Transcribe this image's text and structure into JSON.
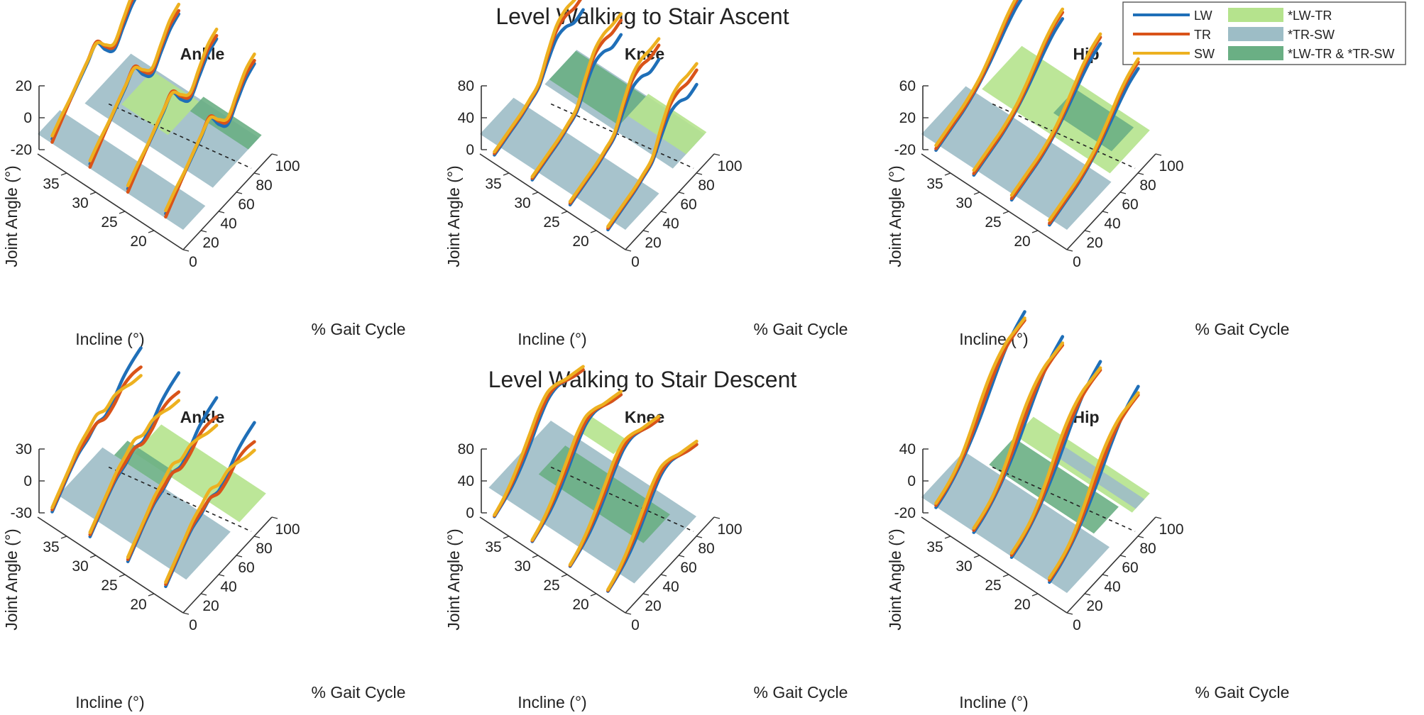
{
  "colors": {
    "LW": "#1f6fb8",
    "TR": "#d95319",
    "SW": "#edb120",
    "LW-TR": "#b5e38d",
    "TR-SW": "#9dbdc6",
    "both": "#6aaf84"
  },
  "legend": {
    "lines": [
      {
        "key": "LW",
        "label": "LW"
      },
      {
        "key": "TR",
        "label": "TR"
      },
      {
        "key": "SW",
        "label": "SW"
      }
    ],
    "patches": [
      {
        "key": "LW-TR",
        "label": "*LW-TR"
      },
      {
        "key": "TR-SW",
        "label": "*TR-SW"
      },
      {
        "key": "both",
        "label": "*LW-TR & *TR-SW"
      }
    ]
  },
  "rows": [
    {
      "title": "Level Walking to Stair Ascent"
    },
    {
      "title": "Level Walking to Stair Descent"
    }
  ],
  "axes": {
    "xlabel": "Incline (°)",
    "ylabel": "% Gait Cycle",
    "zlabel": "Joint Angle (°)",
    "incline_ticks": [
      "35",
      "30",
      "25",
      "20"
    ],
    "gait_ticks": [
      "0",
      "20",
      "40",
      "60",
      "80",
      "100"
    ]
  },
  "chart_data": [
    {
      "type": "line",
      "row": 0,
      "title": "Ankle",
      "x": [
        37.5,
        31,
        24.5,
        18
      ],
      "z_range": [
        -20,
        20
      ],
      "z_ticks": [
        "20",
        "0",
        "-20"
      ],
      "series": [
        {
          "name": "LW",
          "x": [
            0,
            10,
            20,
            30,
            40,
            50,
            60,
            70,
            80,
            90,
            100
          ],
          "z": [
            -10,
            -4,
            2,
            8,
            14,
            20,
            10,
            4,
            12,
            20,
            24
          ]
        },
        {
          "name": "TR",
          "x": [
            0,
            10,
            20,
            30,
            40,
            50,
            60,
            70,
            80,
            90,
            100
          ],
          "z": [
            -12,
            -5,
            2,
            9,
            15,
            21,
            12,
            6,
            15,
            23,
            26
          ]
        },
        {
          "name": "SW",
          "x": [
            0,
            10,
            20,
            30,
            40,
            50,
            60,
            70,
            80,
            90,
            100
          ],
          "z": [
            -8,
            -2,
            3,
            9,
            15,
            20,
            13,
            8,
            17,
            26,
            30
          ]
        }
      ],
      "bands": [
        {
          "type": "TR-SW",
          "x": [
            0,
            25
          ],
          "incline": [
            15,
            40
          ]
        },
        {
          "type": "TR-SW",
          "x": [
            40,
            92
          ],
          "incline": [
            16,
            38
          ]
        },
        {
          "type": "LW-TR",
          "x": [
            55,
            90
          ],
          "incline": [
            26,
            34
          ]
        },
        {
          "type": "both",
          "x": [
            80,
            95
          ],
          "incline": [
            16,
            26
          ]
        }
      ]
    },
    {
      "type": "line",
      "row": 0,
      "title": "Knee",
      "x": [
        37.5,
        31,
        24.5,
        18
      ],
      "z_range": [
        0,
        80
      ],
      "z_ticks": [
        "80",
        "40",
        "0"
      ],
      "series": [
        {
          "name": "LW",
          "x": [
            0,
            10,
            20,
            30,
            40,
            50,
            60,
            70,
            80,
            90,
            100
          ],
          "z": [
            0,
            4,
            8,
            12,
            18,
            25,
            45,
            62,
            64,
            58,
            62
          ]
        },
        {
          "name": "TR",
          "x": [
            0,
            10,
            20,
            30,
            40,
            50,
            60,
            70,
            80,
            90,
            100
          ],
          "z": [
            2,
            6,
            10,
            14,
            20,
            28,
            52,
            72,
            78,
            76,
            80
          ]
        },
        {
          "name": "SW",
          "x": [
            0,
            10,
            20,
            30,
            40,
            50,
            60,
            70,
            80,
            90,
            100
          ],
          "z": [
            4,
            8,
            12,
            16,
            22,
            30,
            56,
            78,
            86,
            86,
            88
          ]
        }
      ],
      "bands": [
        {
          "type": "TR-SW",
          "x": [
            0,
            38
          ],
          "incline": [
            15,
            40
          ]
        },
        {
          "type": "TR-SW",
          "x": [
            60,
            96
          ],
          "incline": [
            16,
            38
          ]
        },
        {
          "type": "both",
          "x": [
            65,
            95
          ],
          "incline": [
            26,
            38
          ]
        },
        {
          "type": "LW-TR",
          "x": [
            75,
            98
          ],
          "incline": [
            16,
            26
          ]
        }
      ]
    },
    {
      "type": "line",
      "row": 0,
      "title": "Hip",
      "x": [
        37.5,
        31,
        24.5,
        18
      ],
      "z_range": [
        -20,
        60
      ],
      "z_ticks": [
        "60",
        "20",
        "-20"
      ],
      "series": [
        {
          "name": "LW",
          "x": [
            0,
            10,
            20,
            30,
            40,
            50,
            60,
            70,
            80,
            90,
            100
          ],
          "z": [
            -14,
            -10,
            -6,
            -2,
            4,
            12,
            22,
            34,
            46,
            56,
            62
          ]
        },
        {
          "name": "TR",
          "x": [
            0,
            10,
            20,
            30,
            40,
            50,
            60,
            70,
            80,
            90,
            100
          ],
          "z": [
            -12,
            -8,
            -4,
            0,
            6,
            14,
            26,
            40,
            54,
            64,
            70
          ]
        },
        {
          "name": "SW",
          "x": [
            0,
            10,
            20,
            30,
            40,
            50,
            60,
            70,
            80,
            90,
            100
          ],
          "z": [
            -8,
            -4,
            0,
            4,
            10,
            18,
            30,
            44,
            58,
            68,
            74
          ]
        }
      ],
      "bands": [
        {
          "type": "TR-SW",
          "x": [
            0,
            50
          ],
          "incline": [
            15,
            40
          ]
        },
        {
          "type": "LW-TR",
          "x": [
            55,
            100
          ],
          "incline": [
            16,
            38
          ]
        },
        {
          "type": "both",
          "x": [
            70,
            95
          ],
          "incline": [
            18,
            28
          ]
        }
      ]
    },
    {
      "type": "line",
      "row": 1,
      "title": "Ankle",
      "x": [
        37.5,
        31,
        24.5,
        18
      ],
      "z_range": [
        -30,
        30
      ],
      "z_ticks": [
        "30",
        "0",
        "-30"
      ],
      "series": [
        {
          "name": "LW",
          "x": [
            0,
            10,
            20,
            30,
            40,
            50,
            60,
            70,
            80,
            90,
            100
          ],
          "z": [
            -24,
            -14,
            -4,
            4,
            8,
            14,
            12,
            20,
            30,
            36,
            40
          ]
        },
        {
          "name": "TR",
          "x": [
            0,
            10,
            20,
            30,
            40,
            50,
            60,
            70,
            80,
            90,
            100
          ],
          "z": [
            -22,
            -12,
            -2,
            6,
            10,
            14,
            10,
            14,
            22,
            24,
            22
          ]
        },
        {
          "name": "SW",
          "x": [
            0,
            10,
            20,
            30,
            40,
            50,
            60,
            70,
            80,
            90,
            100
          ],
          "z": [
            -20,
            -10,
            0,
            10,
            16,
            22,
            18,
            22,
            20,
            16,
            14
          ]
        }
      ],
      "bands": [
        {
          "type": "TR-SW",
          "x": [
            10,
            60
          ],
          "incline": [
            16,
            38
          ]
        },
        {
          "type": "LW-TR",
          "x": [
            70,
            100
          ],
          "incline": [
            16,
            34
          ]
        },
        {
          "type": "both",
          "x": [
            60,
            75
          ],
          "incline": [
            28,
            36
          ]
        }
      ]
    },
    {
      "type": "line",
      "row": 1,
      "title": "Knee",
      "x": [
        37.5,
        31,
        24.5,
        18
      ],
      "z_range": [
        0,
        80
      ],
      "z_ticks": [
        "80",
        "40",
        "0"
      ],
      "series": [
        {
          "name": "LW",
          "x": [
            0,
            10,
            20,
            30,
            40,
            50,
            60,
            70,
            80,
            90,
            100
          ],
          "z": [
            2,
            8,
            16,
            28,
            44,
            62,
            76,
            80,
            76,
            70,
            66
          ]
        },
        {
          "name": "TR",
          "x": [
            0,
            10,
            20,
            30,
            40,
            50,
            60,
            70,
            80,
            90,
            100
          ],
          "z": [
            3,
            10,
            20,
            34,
            50,
            68,
            80,
            82,
            76,
            70,
            66
          ]
        },
        {
          "name": "SW",
          "x": [
            0,
            10,
            20,
            30,
            40,
            50,
            60,
            70,
            80,
            90,
            100
          ],
          "z": [
            4,
            12,
            24,
            40,
            58,
            76,
            86,
            84,
            78,
            74,
            70
          ]
        }
      ],
      "bands": [
        {
          "type": "TR-SW",
          "x": [
            10,
            80
          ],
          "incline": [
            15,
            40
          ]
        },
        {
          "type": "both",
          "x": [
            40,
            70
          ],
          "incline": [
            18,
            36
          ]
        },
        {
          "type": "LW-TR",
          "x": [
            85,
            100
          ],
          "incline": [
            30,
            36
          ]
        }
      ]
    },
    {
      "type": "line",
      "row": 1,
      "title": "Hip",
      "x": [
        37.5,
        31,
        24.5,
        18
      ],
      "z_range": [
        -20,
        40
      ],
      "z_ticks": [
        "40",
        "0",
        "-20"
      ],
      "series": [
        {
          "name": "LW",
          "x": [
            0,
            10,
            20,
            30,
            40,
            50,
            60,
            70,
            80,
            90,
            100
          ],
          "z": [
            -10,
            -6,
            0,
            8,
            18,
            30,
            44,
            58,
            70,
            78,
            84
          ]
        },
        {
          "name": "TR",
          "x": [
            0,
            10,
            20,
            30,
            40,
            50,
            60,
            70,
            80,
            90,
            100
          ],
          "z": [
            -8,
            -4,
            2,
            10,
            22,
            36,
            50,
            62,
            70,
            74,
            76
          ]
        },
        {
          "name": "SW",
          "x": [
            0,
            10,
            20,
            30,
            40,
            50,
            60,
            70,
            80,
            90,
            100
          ],
          "z": [
            -6,
            -2,
            4,
            14,
            28,
            44,
            58,
            68,
            74,
            76,
            78
          ]
        }
      ],
      "bands": [
        {
          "type": "TR-SW",
          "x": [
            0,
            48
          ],
          "incline": [
            15,
            40
          ]
        },
        {
          "type": "both",
          "x": [
            50,
            78
          ],
          "incline": [
            18,
            36
          ]
        },
        {
          "type": "LW-TR",
          "x": [
            80,
            100
          ],
          "incline": [
            16,
            36
          ]
        },
        {
          "type": "TR-SW",
          "x": [
            84,
            94
          ],
          "incline": [
            16,
            30
          ]
        }
      ]
    }
  ]
}
